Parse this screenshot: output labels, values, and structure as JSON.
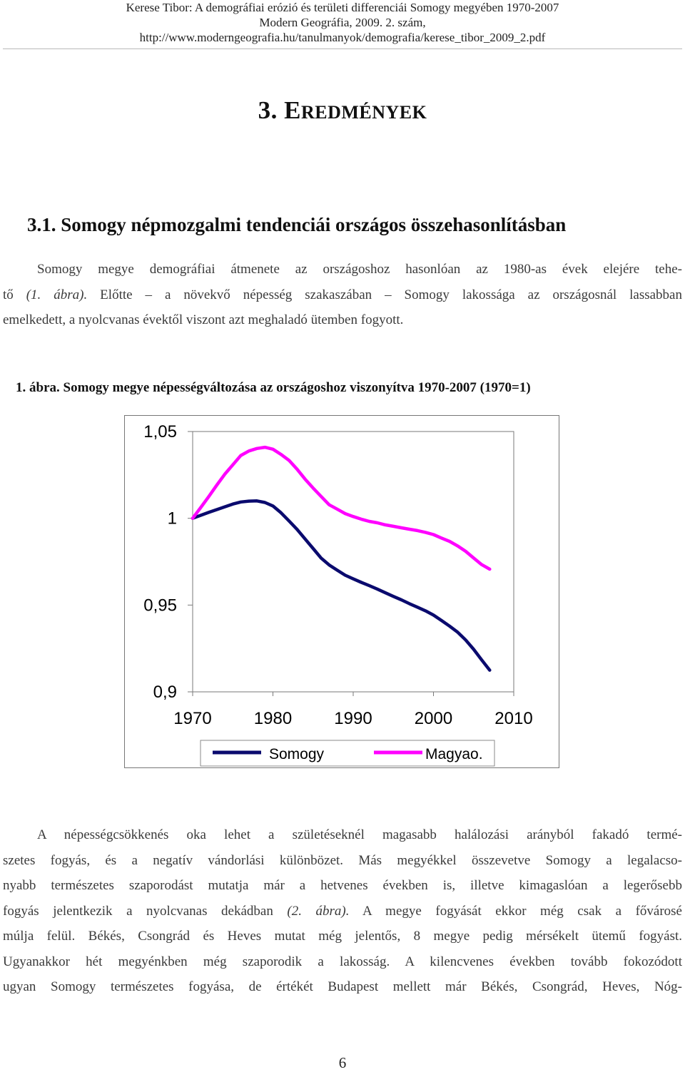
{
  "header": {
    "line1": "Kerese Tibor: A demográfiai erózió és területi differenciái Somogy megyében 1970-2007",
    "line2": "Modern Geográfia, 2009. 2. szám,",
    "line3": "http://www.moderngeografia.hu/tanulmanyok/demografia/kerese_tibor_2009_2.pdf"
  },
  "section_heading": {
    "number": "3. ",
    "initial": "E",
    "rest": "REDMÉNYEK"
  },
  "subsection_heading": "3.1. Somogy népmozgalmi tendenciái országos összehasonlításban",
  "paragraph1": {
    "line1": "Somogy megye demográfiai átmenete az országoshoz hasonlóan az 1980-as évek elejére tehe-",
    "line2_pre": "tő ",
    "line2_ref": "(1. ábra).",
    "line2_post": " Előtte – a növekvő népesség szakaszában – Somogy lakossága az országosnál lassabban",
    "line3": "emelkedett, a nyolcvanas évektől viszont azt meghaladó ütemben fogyott."
  },
  "figure_caption": "1. ábra. Somogy megye népességváltozása az országoshoz viszonyítva 1970-2007 (1970=1)",
  "chart_data": {
    "type": "line",
    "title": "",
    "xlabel": "",
    "ylabel": "",
    "xlim": [
      1970,
      2010
    ],
    "ylim": [
      0.9,
      1.05
    ],
    "x_ticks": [
      "1970",
      "1980",
      "1990",
      "2000",
      "2010"
    ],
    "y_ticks": [
      "0,9",
      "0,95",
      "1",
      "1,05"
    ],
    "grid": false,
    "legend_position": "bottom",
    "series": [
      {
        "name": "Somogy",
        "color": "#0a0a6e",
        "x": [
          1970,
          1971,
          1972,
          1973,
          1974,
          1975,
          1976,
          1977,
          1978,
          1979,
          1980,
          1981,
          1982,
          1983,
          1984,
          1985,
          1986,
          1987,
          1988,
          1989,
          1990,
          1991,
          1992,
          1993,
          1994,
          1995,
          1996,
          1997,
          1998,
          1999,
          2000,
          2001,
          2002,
          2003,
          2004,
          2005,
          2006,
          2007
        ],
        "values": [
          1.0,
          1.0017,
          1.0034,
          1.005,
          1.0066,
          1.0082,
          1.0094,
          1.0099,
          1.01,
          1.0091,
          1.0071,
          1.0032,
          0.9985,
          0.9936,
          0.9881,
          0.9826,
          0.9771,
          0.9731,
          0.9701,
          0.9672,
          0.9651,
          0.9631,
          0.9612,
          0.9592,
          0.9571,
          0.955,
          0.953,
          0.9508,
          0.9488,
          0.9467,
          0.9442,
          0.9411,
          0.9379,
          0.9344,
          0.9299,
          0.9245,
          0.9184,
          0.9125
        ]
      },
      {
        "name": "Magyao.",
        "color": "#ff00ff",
        "x": [
          1970,
          1971,
          1972,
          1973,
          1974,
          1975,
          1976,
          1977,
          1978,
          1979,
          1980,
          1981,
          1982,
          1983,
          1984,
          1985,
          1986,
          1987,
          1988,
          1989,
          1990,
          1991,
          1992,
          1993,
          1994,
          1995,
          1996,
          1997,
          1998,
          1999,
          2000,
          2001,
          2002,
          2003,
          2004,
          2005,
          2006,
          2007
        ],
        "values": [
          1.0,
          1.0062,
          1.0125,
          1.0191,
          1.0254,
          1.0308,
          1.0362,
          1.0388,
          1.0402,
          1.0409,
          1.0398,
          1.0368,
          1.0334,
          1.0283,
          1.0226,
          1.0174,
          1.0126,
          1.0078,
          1.0053,
          1.0027,
          1.001,
          0.9995,
          0.9982,
          0.9974,
          0.9962,
          0.9954,
          0.9945,
          0.9937,
          0.9929,
          0.9919,
          0.9906,
          0.9886,
          0.9867,
          0.9841,
          0.981,
          0.9771,
          0.9733,
          0.9707
        ]
      }
    ]
  },
  "paragraph2": {
    "line1": "A népességcsökkenés oka lehet a születéseknél magasabb halálozási arányból fakadó termé-",
    "line2": "szetes fogyás, és a negatív vándorlási különbözet. Más megyékkel összevetve Somogy a legalacso-",
    "line3": "nyabb természetes szaporodást mutatja már a hetvenes években is, illetve kimagaslóan a legerősebb",
    "line4_pre": "fogyás jelentkezik a nyolcvanas dekádban ",
    "line4_ref": "(2. ábra).",
    "line4_post": " A megye fogyását ekkor még csak a fővárosé",
    "line5": "múlja felül. Békés, Csongrád és Heves mutat még jelentős, 8 megye pedig mérsékelt ütemű fogyást.",
    "line6": "Ugyanakkor hét megyénkben még szaporodik a lakosság. A kilencvenes években tovább fokozódott",
    "line7": "ugyan Somogy természetes fogyása, de értékét Budapest mellett már Békés, Csongrád, Heves, Nóg-"
  },
  "page_number": "6"
}
